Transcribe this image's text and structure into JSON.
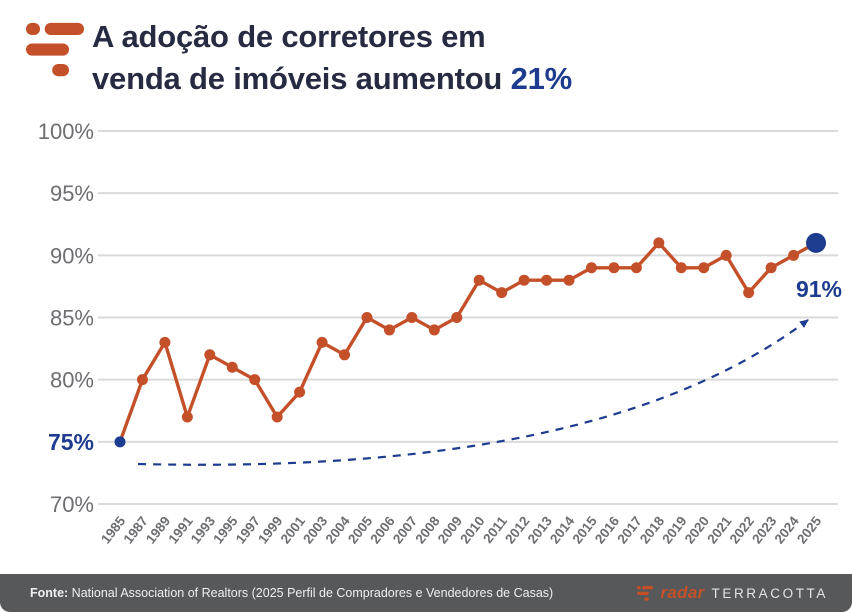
{
  "header": {
    "title_line1": "A adoção de corretores em",
    "title_line2_prefix": "venda de imóveis aumentou ",
    "title_highlight": "21%"
  },
  "chart_data": {
    "type": "line",
    "title": "A adoção de corretores em venda de imóveis aumentou 21%",
    "x": [
      "1985",
      "1987",
      "1989",
      "1991",
      "1993",
      "1995",
      "1997",
      "1999",
      "2001",
      "2003",
      "2004",
      "2005",
      "2006",
      "2007",
      "2008",
      "2009",
      "2010",
      "2011",
      "2012",
      "2013",
      "2014",
      "2015",
      "2016",
      "2017",
      "2018",
      "2019",
      "2020",
      "2021",
      "2022",
      "2023",
      "2024",
      "2025"
    ],
    "values": [
      75,
      80,
      83,
      77,
      82,
      81,
      80,
      77,
      79,
      83,
      82,
      85,
      84,
      85,
      84,
      85,
      88,
      87,
      88,
      88,
      88,
      89,
      89,
      89,
      91,
      89,
      89,
      90,
      87,
      89,
      90,
      91
    ],
    "ylim": [
      70,
      100
    ],
    "yticks": [
      100,
      95,
      90,
      85,
      80,
      75,
      70
    ],
    "ytick_suffix": "%",
    "highlight_ytick": 75,
    "start_label": "75%",
    "end_label": "91%",
    "grid": "horizontal",
    "legend_position": "none",
    "annotation": "dashed trend arrow from start toward end value"
  },
  "colors": {
    "orange": "#C4502A",
    "navy": "#1E3C8F",
    "title_text": "#262B42",
    "axis_text": "#6D6E71",
    "gridline": "#DADADA",
    "footer_bg": "#57585A",
    "footer_text": "#EFEFEF"
  },
  "footer": {
    "source_prefix": "Fonte:",
    "source_text": "National Association of Realtors (2025 Perfil de Compradores e Vendedores de Casas)",
    "brand_radar": "radar",
    "brand_terracotta": "TERRACOTTA"
  }
}
